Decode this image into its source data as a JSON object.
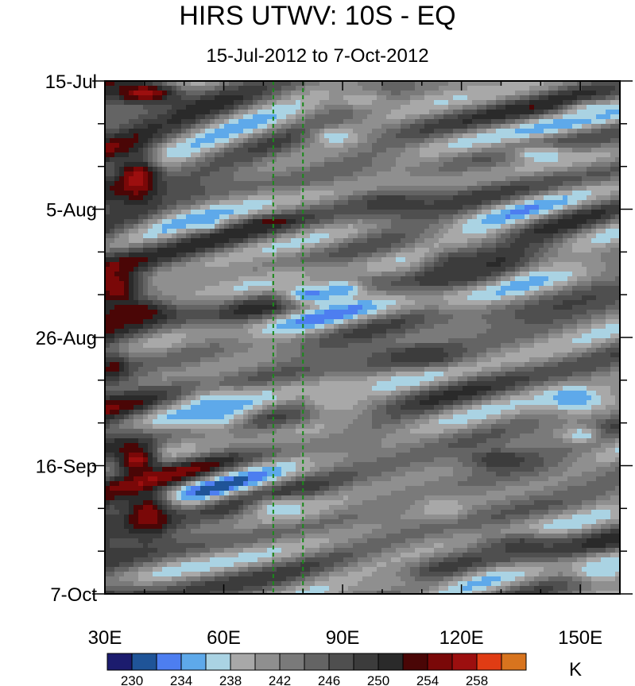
{
  "chart_data": {
    "type": "heatmap",
    "title": "HIRS UTWV: 10S - EQ",
    "subtitle": "15-Jul-2012 to 7-Oct-2012",
    "colorbar_unit": "K",
    "x_range": [
      30,
      160
    ],
    "x_ticks": [
      {
        "value": 30,
        "label": "30E"
      },
      {
        "value": 60,
        "label": "60E"
      },
      {
        "value": 90,
        "label": "90E"
      },
      {
        "value": 120,
        "label": "120E"
      },
      {
        "value": 150,
        "label": "150E"
      }
    ],
    "y_range_days": [
      0,
      84
    ],
    "y_ticks": [
      {
        "day": 0,
        "label": "15-Jul"
      },
      {
        "day": 21,
        "label": "5-Aug"
      },
      {
        "day": 42,
        "label": "26-Aug"
      },
      {
        "day": 63,
        "label": "16-Sep"
      },
      {
        "day": 84,
        "label": "7-Oct"
      }
    ],
    "reference_lines_lon": [
      72.5,
      80
    ],
    "levels": [
      230,
      232,
      234,
      236,
      238,
      240,
      242,
      244,
      246,
      248,
      250,
      252,
      254,
      256,
      258
    ],
    "level_labels": [
      {
        "value": 230,
        "label": "230"
      },
      {
        "value": 234,
        "label": "234"
      },
      {
        "value": 238,
        "label": "238"
      },
      {
        "value": 242,
        "label": "242"
      },
      {
        "value": 246,
        "label": "246"
      },
      {
        "value": 250,
        "label": "250"
      },
      {
        "value": 254,
        "label": "254"
      },
      {
        "value": 258,
        "label": "258"
      }
    ],
    "colors": [
      "#1c1c6e",
      "#1f5498",
      "#4d7ef0",
      "#5ea9ea",
      "#aad3e3",
      "#a8a8a8",
      "#8f8f8f",
      "#7a7a7a",
      "#646464",
      "#4f4f4f",
      "#3c3c3c",
      "#2a2a2a",
      "#4a0606",
      "#7a0808",
      "#9c0f0f",
      "#e03c14",
      "#d8741e"
    ],
    "features": [
      {
        "lon": 40,
        "day": 2,
        "value": 257,
        "rlon": 10,
        "rday": 2
      },
      {
        "lon": 38,
        "day": 16,
        "value": 257,
        "rlon": 6,
        "rday": 4
      },
      {
        "lon": 33,
        "day": 34,
        "value": 256,
        "rlon": 6,
        "rday": 3
      },
      {
        "lon": 38,
        "day": 38,
        "value": 254,
        "rlon": 9,
        "rday": 2
      },
      {
        "lon": 38,
        "day": 62,
        "value": 257,
        "rlon": 6,
        "rday": 3
      },
      {
        "lon": 41,
        "day": 71,
        "value": 256,
        "rlon": 7,
        "rday": 4
      },
      {
        "lon": 32,
        "day": 47,
        "value": 253,
        "rlon": 4,
        "rday": 2
      },
      {
        "lon": 72,
        "day": 23,
        "value": 254,
        "rlon": 4,
        "rday": 0.6
      },
      {
        "lon": 56,
        "day": 23,
        "value": 234,
        "rlon": 3,
        "rday": 1.2
      },
      {
        "lon": 82,
        "day": 35,
        "value": 233,
        "rlon": 9,
        "rday": 2
      },
      {
        "lon": 90,
        "day": 34,
        "value": 234,
        "rlon": 6,
        "rday": 1.5
      },
      {
        "lon": 58,
        "day": 54,
        "value": 235,
        "rlon": 9,
        "rday": 4
      },
      {
        "lon": 88,
        "day": 9,
        "value": 236,
        "rlon": 6,
        "rday": 1.5
      },
      {
        "lon": 148,
        "day": 52,
        "value": 234,
        "rlon": 8,
        "rday": 2
      },
      {
        "lon": 150,
        "day": 58,
        "value": 236,
        "rlon": 5,
        "rday": 1.5
      },
      {
        "lon": 155,
        "day": 80,
        "value": 236,
        "rlon": 6,
        "rday": 2
      },
      {
        "lon": 152,
        "day": 5,
        "value": 237,
        "rlon": 5,
        "rday": 1.5
      },
      {
        "lon": 95,
        "day": 3,
        "value": 238,
        "rlon": 6,
        "rday": 1.5
      },
      {
        "lon": 140,
        "day": 12,
        "value": 236,
        "rlon": 8,
        "rday": 1.5
      },
      {
        "lon": 74,
        "day": 70,
        "value": 237,
        "rlon": 8,
        "rday": 2
      },
      {
        "lon": 88,
        "day": 52,
        "value": 238,
        "rlon": 8,
        "rday": 3
      },
      {
        "lon": 115,
        "day": 70,
        "value": 238,
        "rlon": 6,
        "rday": 2
      },
      {
        "lon": 100,
        "day": 82,
        "value": 240,
        "rlon": 10,
        "rday": 2
      },
      {
        "lon": 120,
        "day": 30,
        "value": 249,
        "rlon": 10,
        "rday": 3
      },
      {
        "lon": 110,
        "day": 45,
        "value": 250,
        "rlon": 12,
        "rday": 2
      },
      {
        "lon": 130,
        "day": 62,
        "value": 250,
        "rlon": 10,
        "rday": 2
      },
      {
        "lon": 102,
        "day": 20,
        "value": 250,
        "rlon": 10,
        "rday": 2
      },
      {
        "lon": 135,
        "day": 76,
        "value": 249,
        "rlon": 10,
        "rday": 2
      }
    ]
  }
}
